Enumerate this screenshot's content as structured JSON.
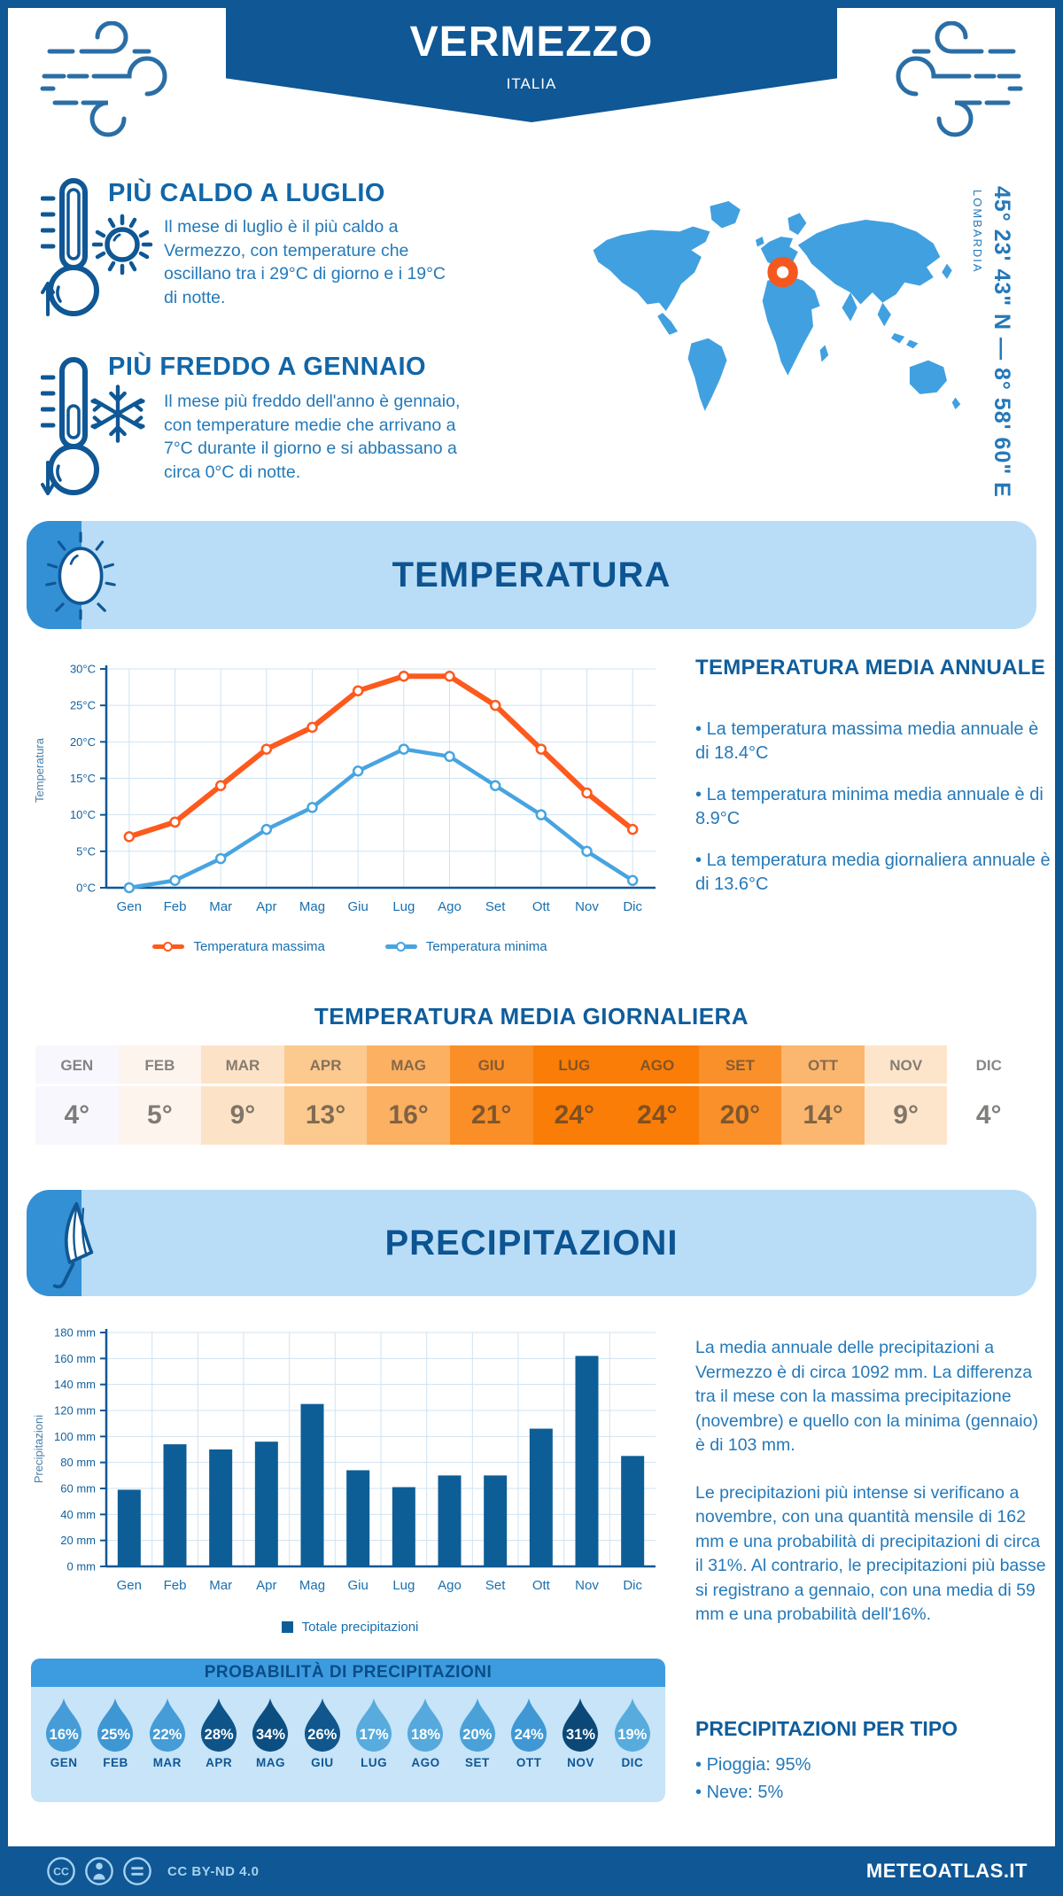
{
  "header": {
    "title": "VERMEZZO",
    "subtitle": "ITALIA"
  },
  "highlights": {
    "warm": {
      "title": "PIÙ CALDO A LUGLIO",
      "text": "Il mese di luglio è il più caldo a Vermezzo, con temperature che oscillano tra i 29°C di giorno e i 19°C di notte."
    },
    "cold": {
      "title": "PIÙ FREDDO A GENNAIO",
      "text": "Il mese più freddo dell'anno è gennaio, con temperature medie che arrivano a 7°C durante il giorno e si abbassano a circa 0°C di notte."
    }
  },
  "map": {
    "region": "LOMBARDIA",
    "coordinates": "45° 23' 43\" N — 8° 58' 60\" E",
    "marker_color": "#f4581f",
    "land_color": "#41a0e0"
  },
  "temperature_section": {
    "banner_title": "TEMPERATURA",
    "annual": {
      "title": "TEMPERATURA MEDIA ANNUALE",
      "bullets": [
        "La temperatura massima media annuale è di 18.4°C",
        "La temperatura minima media annuale è di 8.9°C",
        "La temperatura media giornaliera annuale è di 13.6°C"
      ]
    },
    "daily": {
      "title": "TEMPERATURA MEDIA GIORNALIERA",
      "months": [
        "GEN",
        "FEB",
        "MAR",
        "APR",
        "MAG",
        "GIU",
        "LUG",
        "AGO",
        "SET",
        "OTT",
        "NOV",
        "DIC"
      ],
      "values": [
        "4°",
        "5°",
        "9°",
        "13°",
        "16°",
        "21°",
        "24°",
        "24°",
        "20°",
        "14°",
        "9°",
        "4°"
      ],
      "cell_colors": [
        "#f7f7fd",
        "#fdf4ed",
        "#fce3c8",
        "#fcc98f",
        "#fbb062",
        "#fa8f28",
        "#f97d06",
        "#f97d06",
        "#fa9029",
        "#fbb76f",
        "#fde5cb",
        "#ffffff"
      ]
    }
  },
  "precipitation_section": {
    "banner_title": "PRECIPITAZIONI",
    "summary": {
      "p1": "La media annuale delle precipitazioni a Vermezzo è di circa 1092 mm. La differenza tra il mese con la massima precipitazione (novembre) e quello con la minima (gennaio) è di 103 mm.",
      "p2": "Le precipitazioni più intense si verificano a novembre, con una quantità mensile di 162 mm e una probabilità di precipitazioni di circa il 31%. Al contrario, le precipitazioni più basse si registrano a gennaio, con una media di 59 mm e una probabilità dell'16%."
    },
    "probability": {
      "title": "PROBABILITÀ DI PRECIPITAZIONI",
      "months": [
        "GEN",
        "FEB",
        "MAR",
        "APR",
        "MAG",
        "GIU",
        "LUG",
        "AGO",
        "SET",
        "OTT",
        "NOV",
        "DIC"
      ],
      "values": [
        "16%",
        "25%",
        "22%",
        "28%",
        "34%",
        "26%",
        "17%",
        "18%",
        "20%",
        "24%",
        "31%",
        "19%"
      ],
      "drop_colors": [
        "#459cd6",
        "#3e97d3",
        "#459cd6",
        "#0f5488",
        "#0d4e80",
        "#11568c",
        "#58abdd",
        "#56a9dc",
        "#4aa1d8",
        "#3f98d4",
        "#0b4878",
        "#58abdd"
      ]
    },
    "types": {
      "title": "PRECIPITAZIONI PER TIPO",
      "bullets": [
        "Pioggia: 95%",
        "Neve: 5%"
      ]
    }
  },
  "chart_data": [
    {
      "type": "line",
      "title": "Temperatura",
      "categories": [
        "Gen",
        "Feb",
        "Mar",
        "Apr",
        "Mag",
        "Giu",
        "Lug",
        "Ago",
        "Set",
        "Ott",
        "Nov",
        "Dic"
      ],
      "series": [
        {
          "name": "Temperatura massima",
          "color": "#fd5a1e",
          "values": [
            7,
            9,
            14,
            19,
            22,
            27,
            29,
            29,
            25,
            19,
            13,
            8
          ]
        },
        {
          "name": "Temperatura minima",
          "color": "#47a4e0",
          "values": [
            0,
            1,
            4,
            8,
            11,
            16,
            19,
            18,
            14,
            10,
            5,
            1
          ]
        }
      ],
      "ylabel": "Temperatura",
      "xlabel": "",
      "ylim": [
        0,
        30
      ],
      "ytick_step": 5,
      "ytick_suffix": "°C",
      "grid": true,
      "legend_position": "bottom"
    },
    {
      "type": "bar",
      "title": "Precipitazioni",
      "categories": [
        "Gen",
        "Feb",
        "Mar",
        "Apr",
        "Mag",
        "Giu",
        "Lug",
        "Ago",
        "Set",
        "Ott",
        "Nov",
        "Dic"
      ],
      "series": [
        {
          "name": "Totale precipitazioni",
          "color": "#0d5e96",
          "values": [
            59,
            94,
            90,
            96,
            125,
            74,
            61,
            70,
            70,
            106,
            162,
            85
          ]
        }
      ],
      "ylabel": "Precipitazioni",
      "xlabel": "",
      "ylim": [
        0,
        180
      ],
      "ytick_step": 20,
      "ytick_suffix": " mm",
      "grid": true,
      "legend_position": "bottom"
    }
  ],
  "footer": {
    "license": "CC BY-ND 4.0",
    "site": "METEOATLAS.IT"
  }
}
